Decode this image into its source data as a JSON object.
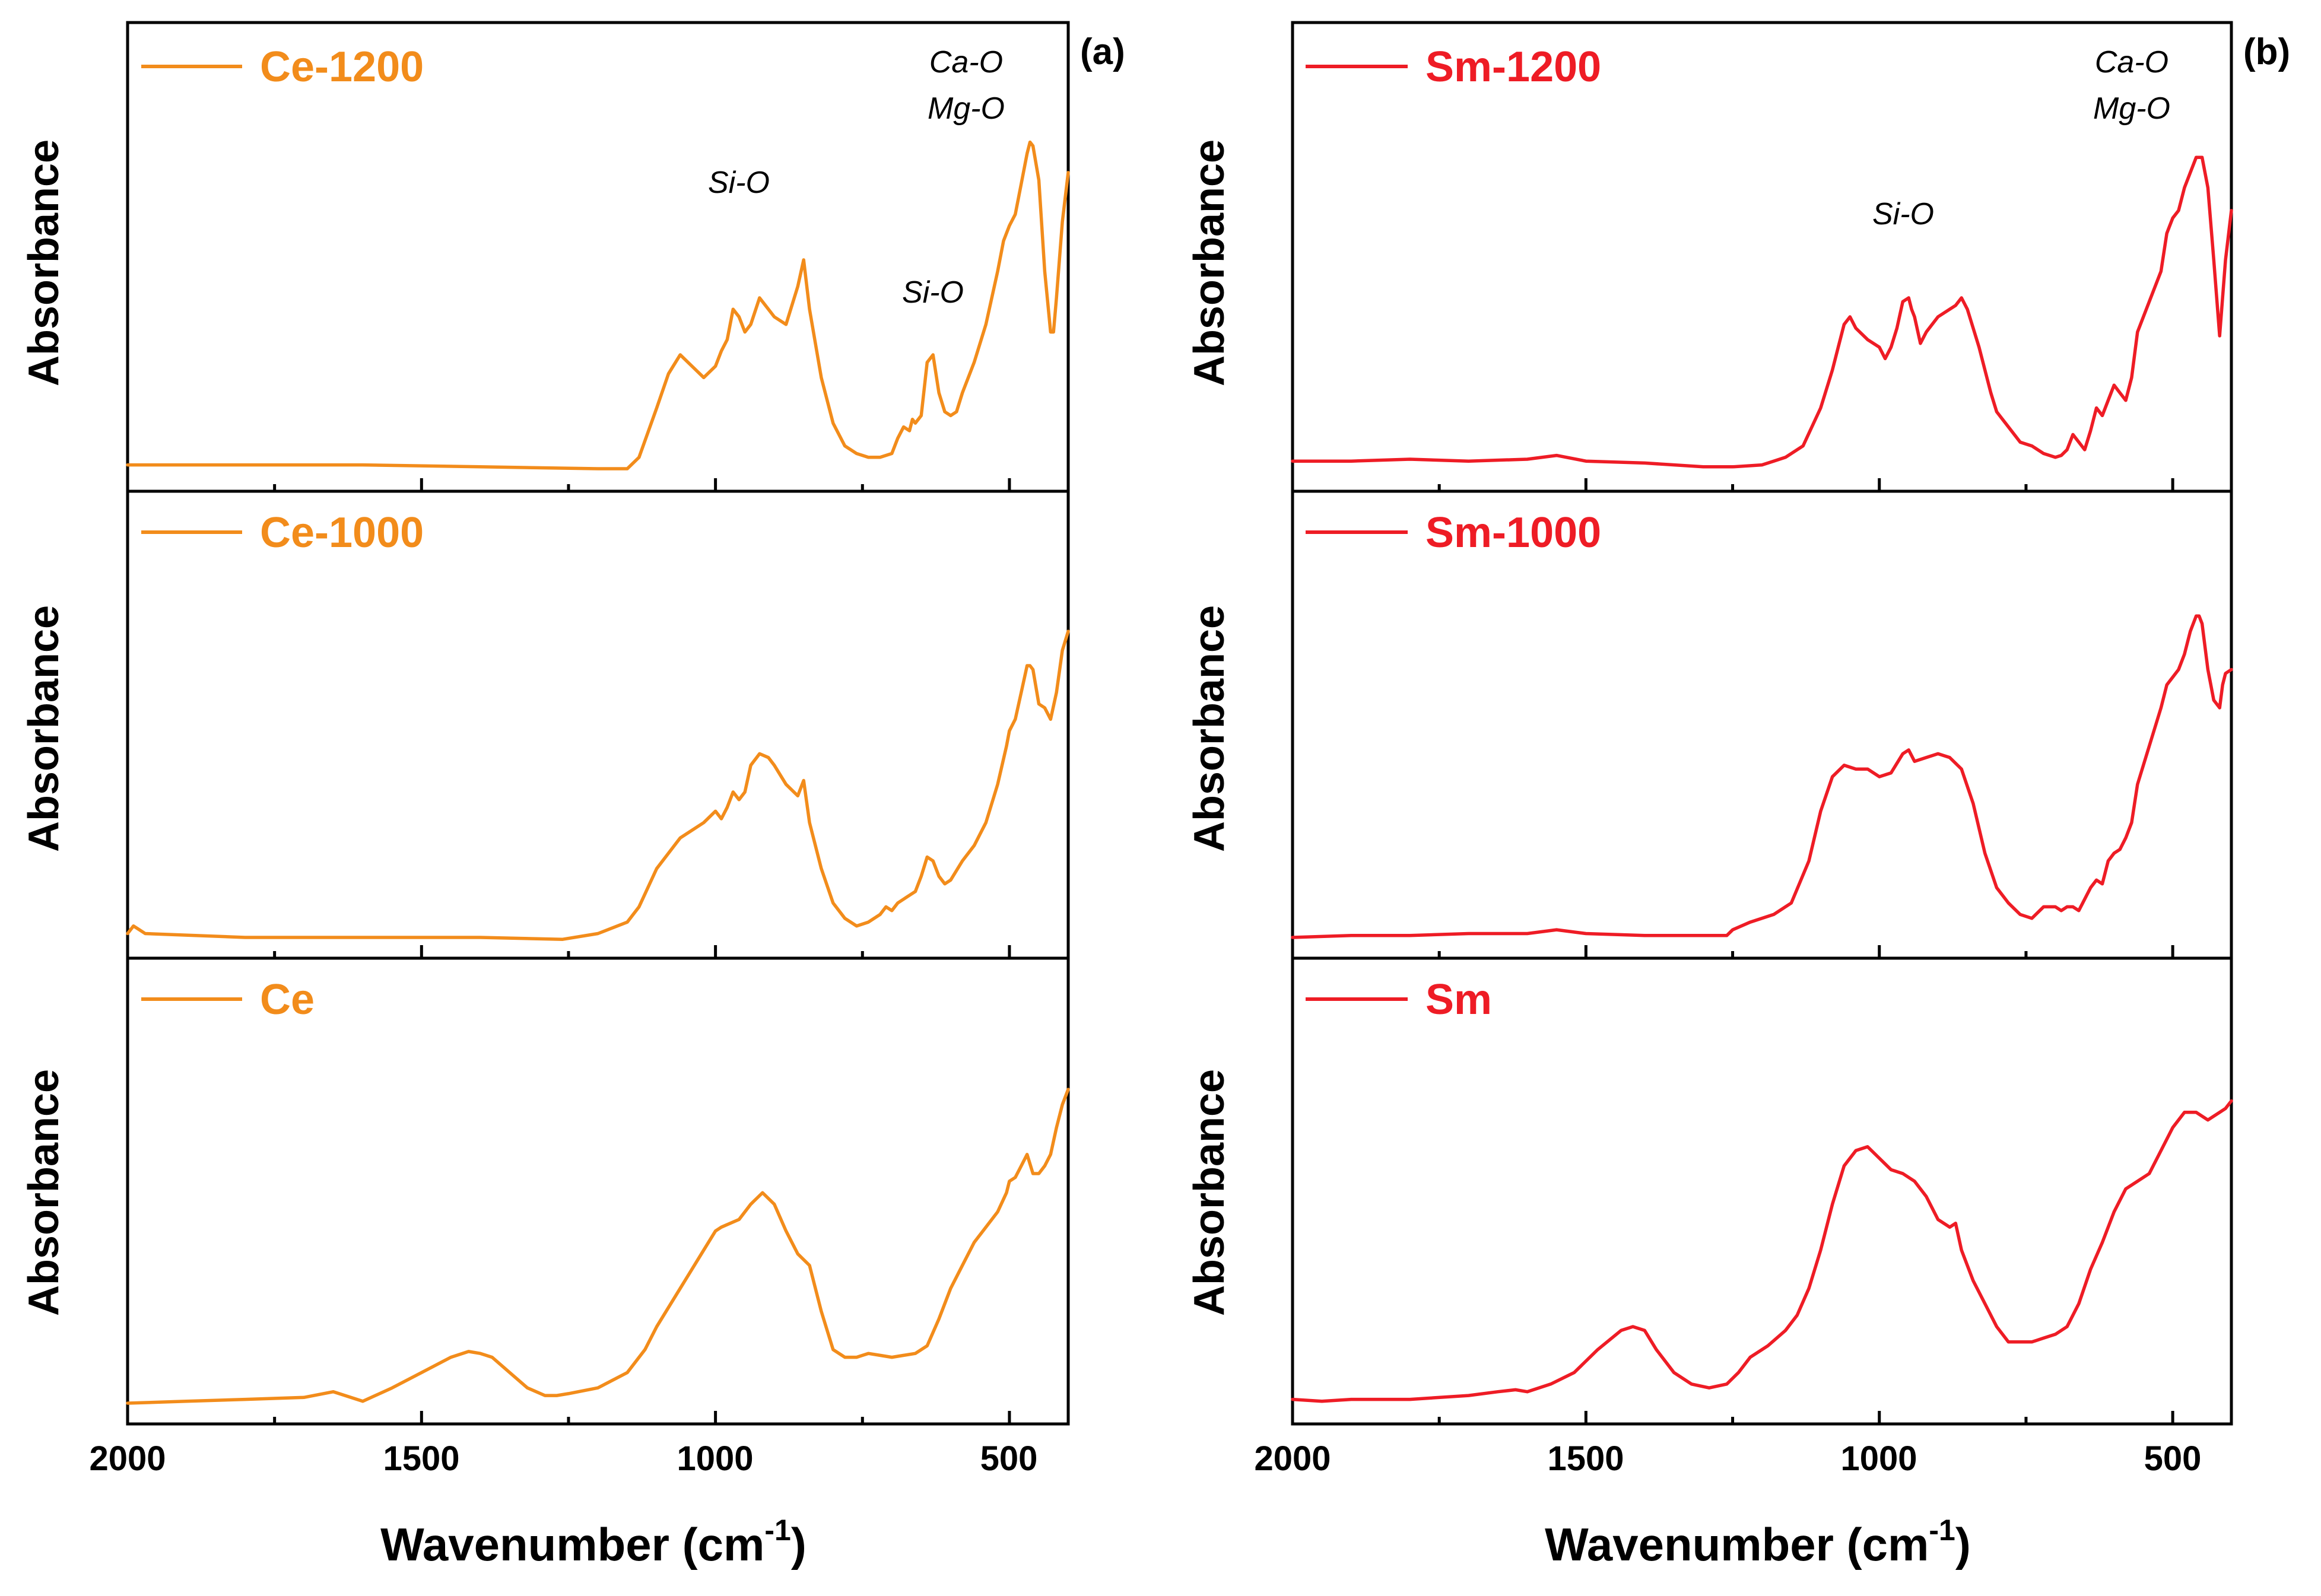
{
  "chart_data": [
    {
      "type": "line",
      "panel_tag": "(a)",
      "color": "#F28C1B",
      "xlabel": "Wavenumber (cm",
      "xlabel_sup": "-1",
      "xlabel_close": ")",
      "ylabel": "Absorbance",
      "xlim": [
        2000,
        400
      ],
      "xticks": [
        2000,
        1500,
        1000,
        500
      ],
      "xtick_labels": [
        "2000",
        "1500",
        "1000",
        "500"
      ],
      "subplots": [
        {
          "name": "Ce-1200",
          "ylim": [
            0,
            1
          ],
          "x": [
            2000,
            1800,
            1600,
            1400,
            1200,
            1150,
            1130,
            1100,
            1080,
            1060,
            1040,
            1020,
            1000,
            990,
            980,
            970,
            960,
            950,
            940,
            925,
            910,
            900,
            880,
            860,
            850,
            840,
            820,
            800,
            780,
            760,
            740,
            720,
            700,
            690,
            680,
            670,
            665,
            660,
            650,
            640,
            630,
            620,
            610,
            600,
            590,
            580,
            560,
            540,
            520,
            510,
            500,
            490,
            480,
            470,
            465,
            460,
            450,
            440,
            430,
            425,
            420,
            410,
            400
          ],
          "values": [
            0.01,
            0.01,
            0.01,
            0.005,
            0.0,
            0.0,
            0.03,
            0.16,
            0.25,
            0.3,
            0.27,
            0.24,
            0.27,
            0.31,
            0.34,
            0.42,
            0.4,
            0.36,
            0.38,
            0.45,
            0.42,
            0.4,
            0.38,
            0.48,
            0.55,
            0.42,
            0.24,
            0.12,
            0.06,
            0.04,
            0.03,
            0.03,
            0.04,
            0.08,
            0.11,
            0.1,
            0.13,
            0.12,
            0.14,
            0.28,
            0.3,
            0.2,
            0.15,
            0.14,
            0.15,
            0.2,
            0.28,
            0.38,
            0.52,
            0.6,
            0.64,
            0.67,
            0.75,
            0.83,
            0.86,
            0.85,
            0.76,
            0.52,
            0.36,
            0.36,
            0.45,
            0.65,
            0.78
          ]
        },
        {
          "name": "Ce-1000",
          "ylim": [
            0,
            1
          ],
          "x": [
            2000,
            1990,
            1980,
            1970,
            1800,
            1600,
            1400,
            1260,
            1200,
            1150,
            1130,
            1100,
            1060,
            1020,
            1000,
            990,
            980,
            970,
            960,
            950,
            940,
            925,
            910,
            900,
            880,
            860,
            850,
            840,
            820,
            800,
            780,
            760,
            740,
            720,
            710,
            700,
            690,
            680,
            670,
            660,
            650,
            640,
            630,
            620,
            610,
            600,
            580,
            560,
            540,
            520,
            505,
            500,
            490,
            480,
            470,
            465,
            460,
            450,
            440,
            430,
            420,
            410,
            400
          ],
          "values": [
            0.01,
            0.03,
            0.02,
            0.01,
            0.0,
            0.0,
            0.0,
            -0.005,
            0.01,
            0.04,
            0.08,
            0.18,
            0.26,
            0.3,
            0.33,
            0.31,
            0.34,
            0.38,
            0.36,
            0.38,
            0.45,
            0.48,
            0.47,
            0.45,
            0.4,
            0.37,
            0.41,
            0.3,
            0.18,
            0.09,
            0.05,
            0.03,
            0.04,
            0.06,
            0.08,
            0.07,
            0.09,
            0.1,
            0.11,
            0.12,
            0.16,
            0.21,
            0.2,
            0.16,
            0.14,
            0.15,
            0.2,
            0.24,
            0.3,
            0.4,
            0.5,
            0.54,
            0.57,
            0.64,
            0.71,
            0.71,
            0.7,
            0.61,
            0.6,
            0.57,
            0.64,
            0.75,
            0.8
          ]
        },
        {
          "name": "Ce",
          "ylim": [
            0,
            1
          ],
          "x": [
            2000,
            1900,
            1800,
            1700,
            1650,
            1600,
            1550,
            1500,
            1450,
            1420,
            1400,
            1380,
            1350,
            1320,
            1290,
            1270,
            1250,
            1200,
            1150,
            1120,
            1100,
            1060,
            1020,
            1000,
            990,
            960,
            940,
            920,
            900,
            880,
            860,
            840,
            820,
            800,
            780,
            760,
            740,
            720,
            700,
            680,
            660,
            640,
            620,
            600,
            580,
            560,
            540,
            520,
            505,
            500,
            490,
            480,
            470,
            460,
            450,
            440,
            430,
            420,
            410,
            400
          ],
          "values": [
            0.0,
            0.005,
            0.01,
            0.015,
            0.03,
            0.005,
            0.04,
            0.08,
            0.12,
            0.135,
            0.13,
            0.12,
            0.08,
            0.04,
            0.02,
            0.02,
            0.025,
            0.04,
            0.08,
            0.14,
            0.2,
            0.3,
            0.4,
            0.45,
            0.46,
            0.48,
            0.52,
            0.55,
            0.52,
            0.45,
            0.39,
            0.36,
            0.24,
            0.14,
            0.12,
            0.12,
            0.13,
            0.125,
            0.12,
            0.125,
            0.13,
            0.15,
            0.22,
            0.3,
            0.36,
            0.42,
            0.46,
            0.5,
            0.55,
            0.58,
            0.59,
            0.62,
            0.65,
            0.6,
            0.6,
            0.62,
            0.65,
            0.72,
            0.78,
            0.82
          ]
        }
      ],
      "annotations": [
        {
          "text": "Si-O"
        },
        {
          "text": "Si-O"
        },
        {
          "text": "Ca-O"
        },
        {
          "text": "Mg-O"
        }
      ]
    },
    {
      "type": "line",
      "panel_tag": "(b)",
      "color": "#EE1C25",
      "xlabel": "Wavenumber (cm",
      "xlabel_sup": "-1",
      "xlabel_close": ")",
      "ylabel": "Absorbance",
      "xlim": [
        2000,
        400
      ],
      "xticks": [
        2000,
        1500,
        1000,
        500
      ],
      "xtick_labels": [
        "2000",
        "1500",
        "1000",
        "500"
      ],
      "subplots": [
        {
          "name": "Sm-1200",
          "ylim": [
            0,
            1
          ],
          "x": [
            2000,
            1900,
            1800,
            1700,
            1600,
            1550,
            1500,
            1400,
            1300,
            1250,
            1200,
            1180,
            1160,
            1130,
            1100,
            1080,
            1070,
            1060,
            1050,
            1040,
            1020,
            1000,
            990,
            980,
            970,
            960,
            950,
            945,
            940,
            930,
            920,
            900,
            880,
            870,
            860,
            850,
            830,
            810,
            800,
            790,
            780,
            760,
            740,
            720,
            700,
            690,
            680,
            670,
            660,
            650,
            640,
            630,
            620,
            610,
            600,
            590,
            580,
            570,
            560,
            540,
            520,
            510,
            500,
            490,
            480,
            470,
            460,
            450,
            440,
            430,
            420,
            410,
            400
          ],
          "values": [
            0.02,
            0.02,
            0.025,
            0.02,
            0.025,
            0.035,
            0.02,
            0.015,
            0.005,
            0.005,
            0.01,
            0.02,
            0.03,
            0.06,
            0.16,
            0.26,
            0.32,
            0.38,
            0.4,
            0.37,
            0.34,
            0.32,
            0.29,
            0.32,
            0.37,
            0.44,
            0.45,
            0.42,
            0.4,
            0.33,
            0.36,
            0.4,
            0.42,
            0.43,
            0.45,
            0.42,
            0.32,
            0.2,
            0.15,
            0.13,
            0.11,
            0.07,
            0.06,
            0.04,
            0.03,
            0.035,
            0.05,
            0.09,
            0.07,
            0.05,
            0.1,
            0.16,
            0.14,
            0.18,
            0.22,
            0.2,
            0.18,
            0.24,
            0.36,
            0.44,
            0.52,
            0.62,
            0.66,
            0.68,
            0.74,
            0.78,
            0.82,
            0.82,
            0.74,
            0.55,
            0.35,
            0.55,
            0.68
          ]
        },
        {
          "name": "Sm-1000",
          "ylim": [
            0,
            1
          ],
          "x": [
            2000,
            1900,
            1800,
            1700,
            1600,
            1550,
            1500,
            1400,
            1300,
            1260,
            1250,
            1220,
            1200,
            1180,
            1150,
            1120,
            1100,
            1080,
            1060,
            1040,
            1020,
            1000,
            980,
            960,
            950,
            940,
            920,
            900,
            880,
            860,
            840,
            820,
            800,
            780,
            760,
            740,
            720,
            700,
            690,
            680,
            670,
            660,
            650,
            640,
            630,
            620,
            610,
            600,
            590,
            580,
            570,
            560,
            540,
            520,
            510,
            500,
            490,
            480,
            470,
            460,
            455,
            450,
            440,
            430,
            420,
            415,
            410,
            400
          ],
          "values": [
            0.0,
            0.005,
            0.005,
            0.01,
            0.01,
            0.02,
            0.01,
            0.005,
            0.005,
            0.005,
            0.02,
            0.04,
            0.05,
            0.06,
            0.09,
            0.2,
            0.33,
            0.42,
            0.45,
            0.44,
            0.44,
            0.42,
            0.43,
            0.48,
            0.49,
            0.46,
            0.47,
            0.48,
            0.47,
            0.44,
            0.35,
            0.22,
            0.13,
            0.09,
            0.06,
            0.05,
            0.08,
            0.08,
            0.07,
            0.08,
            0.08,
            0.07,
            0.1,
            0.13,
            0.15,
            0.14,
            0.2,
            0.22,
            0.23,
            0.26,
            0.3,
            0.4,
            0.5,
            0.6,
            0.66,
            0.68,
            0.7,
            0.74,
            0.8,
            0.84,
            0.84,
            0.82,
            0.7,
            0.62,
            0.6,
            0.66,
            0.69,
            0.7
          ]
        },
        {
          "name": "Sm",
          "ylim": [
            0,
            1
          ],
          "x": [
            2000,
            1950,
            1900,
            1800,
            1700,
            1650,
            1620,
            1600,
            1560,
            1520,
            1480,
            1440,
            1420,
            1400,
            1380,
            1350,
            1320,
            1290,
            1260,
            1240,
            1220,
            1190,
            1160,
            1140,
            1120,
            1100,
            1080,
            1060,
            1040,
            1020,
            1000,
            980,
            960,
            940,
            920,
            900,
            880,
            870,
            860,
            840,
            820,
            800,
            780,
            760,
            740,
            720,
            700,
            680,
            660,
            640,
            620,
            600,
            580,
            560,
            540,
            520,
            500,
            490,
            480,
            460,
            440,
            420,
            410,
            400
          ],
          "values": [
            0.01,
            0.005,
            0.01,
            0.01,
            0.02,
            0.03,
            0.035,
            0.03,
            0.05,
            0.08,
            0.14,
            0.19,
            0.2,
            0.19,
            0.14,
            0.08,
            0.05,
            0.04,
            0.05,
            0.08,
            0.12,
            0.15,
            0.19,
            0.23,
            0.3,
            0.4,
            0.52,
            0.62,
            0.66,
            0.67,
            0.64,
            0.61,
            0.6,
            0.58,
            0.54,
            0.48,
            0.46,
            0.47,
            0.4,
            0.32,
            0.26,
            0.2,
            0.16,
            0.16,
            0.16,
            0.17,
            0.18,
            0.2,
            0.26,
            0.35,
            0.42,
            0.5,
            0.56,
            0.58,
            0.6,
            0.66,
            0.72,
            0.74,
            0.76,
            0.76,
            0.74,
            0.76,
            0.77,
            0.79
          ]
        }
      ],
      "annotations": [
        {
          "text": "Si-O"
        },
        {
          "text": "Ca-O"
        },
        {
          "text": "Mg-O"
        }
      ]
    }
  ]
}
